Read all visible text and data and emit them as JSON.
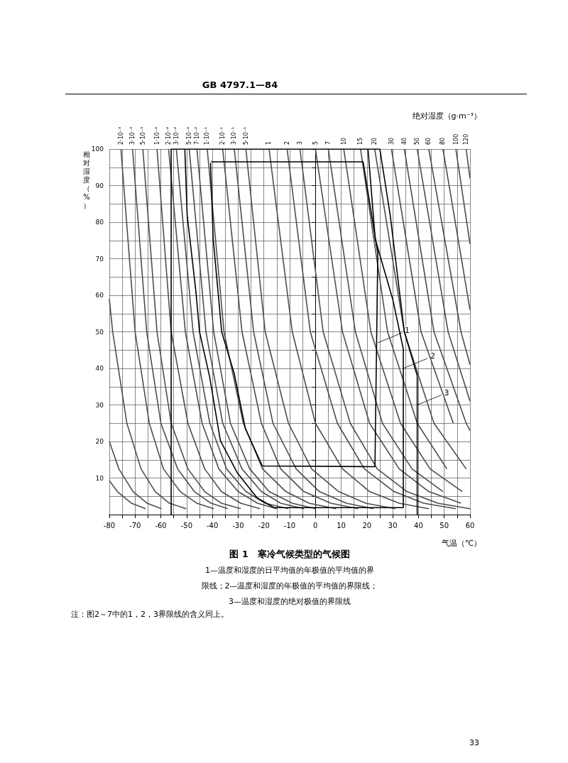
{
  "chart_data": {
    "type": "line",
    "title": "图 1　寒冷气候类型的气候图",
    "xlabel": "气温（℃）",
    "ylabel": "相对湿度（%）",
    "x2label": "绝对湿度（g·m⁻³）",
    "xlim": [
      -80,
      60
    ],
    "ylim": [
      0,
      100
    ],
    "xticks": [
      -80,
      {
        "value": -75,
        "label": null
      },
      -70,
      {
        "value": -65,
        "label": null
      },
      -60,
      {
        "value": -55,
        "label": null
      },
      -50,
      {
        "value": -45,
        "label": null
      },
      -40,
      {
        "value": -35,
        "label": null
      },
      -30,
      {
        "value": -25,
        "label": null
      },
      -20,
      {
        "value": -15,
        "label": null
      },
      -10,
      {
        "value": -5,
        "label": null
      },
      0,
      {
        "value": 5,
        "label": null
      },
      10,
      {
        "value": 15,
        "label": null
      },
      20,
      {
        "value": 25,
        "label": null
      },
      30,
      {
        "value": 35,
        "label": null
      },
      40,
      {
        "value": 45,
        "label": null
      },
      50,
      {
        "value": 55,
        "label": null
      },
      60
    ],
    "yticks": [
      {
        "value": 0,
        "label": null
      },
      {
        "value": 5,
        "label": null
      },
      10,
      {
        "value": 15,
        "label": null
      },
      20,
      {
        "value": 25,
        "label": null
      },
      30,
      {
        "value": 35,
        "label": null
      },
      40,
      {
        "value": 45,
        "label": null
      },
      50,
      {
        "value": 55,
        "label": null
      },
      60,
      {
        "value": 65,
        "label": null
      },
      70,
      {
        "value": 75,
        "label": null
      },
      80,
      {
        "value": 85,
        "label": null
      },
      90,
      {
        "value": 95,
        "label": null
      },
      100
    ],
    "grid": true,
    "series": [
      {
        "color": "#000000",
        "x": [
          -56,
          -56,
          25,
          29,
          34.5,
          39.5,
          39.5
        ],
        "values": [
          0,
          100,
          100,
          82,
          50,
          38,
          0
        ]
      },
      {
        "color": "#000000",
        "x": [
          -50.7,
          -49.8,
          -46.4,
          -45,
          -41.1,
          -36.9,
          -30.3,
          -22.7,
          -16.1,
          34.1,
          34.1,
          30,
          23.2,
          20.4
        ],
        "values": [
          100,
          82,
          61,
          50,
          37.8,
          20.2,
          11.4,
          4.6,
          1.9,
          1.9,
          45.3,
          58.9,
          75.4,
          100
        ]
      },
      {
        "color": "#000000",
        "x": [
          -40.7,
          -39.7,
          -37.8,
          -36.4,
          -31.5,
          -27.2,
          -20.6,
          23.1,
          24.2,
          18.5,
          -40.5
        ],
        "values": [
          96.2,
          75.4,
          60.9,
          50,
          38.5,
          23.5,
          13.3,
          13.1,
          71.5,
          96.5,
          96.5
        ]
      },
      {
        "color": "#4d4d4d",
        "x": [
          -80,
          -78.7,
          -73.2,
          -67.7,
          -62.2,
          -56.7,
          -50.2
        ],
        "values": [
          59,
          50,
          25,
          12.5,
          6.3,
          3.1,
          1.6
        ]
      },
      {
        "color": "#4d4d4d",
        "x": [
          -80,
          -76.3,
          -70.8,
          -65.3,
          -59.8
        ],
        "values": [
          20,
          12.5,
          6.3,
          3.1,
          1.6
        ]
      },
      {
        "color": "#4d4d4d",
        "x": [
          -80,
          -76.9,
          -71.4,
          -65.9
        ],
        "values": [
          9.3,
          6.3,
          3.1,
          1.6
        ]
      },
      {
        "color": "#4d4d4d",
        "x": [
          -75.5,
          -70,
          -64.5,
          -59,
          -52.5,
          -46,
          -39.5
        ],
        "values": [
          100,
          50,
          25,
          12.5,
          6.3,
          3.1,
          1.6
        ]
      },
      {
        "color": "#4d4d4d",
        "x": [
          -71,
          -65.5,
          -60,
          -53.5,
          -47,
          -40.5,
          -34
        ],
        "values": [
          100,
          50,
          25,
          12.5,
          6.3,
          3.1,
          1.6
        ]
      },
      {
        "color": "#4d4d4d",
        "x": [
          -67,
          -61.5,
          -56,
          -49.5,
          -43,
          -36.5,
          -29
        ],
        "values": [
          100,
          50,
          25,
          12.5,
          6.3,
          3.1,
          1.6
        ]
      },
      {
        "color": "#4d4d4d",
        "x": [
          -61.5,
          -56,
          -49.5,
          -43,
          -36.5,
          -29,
          -21.5
        ],
        "values": [
          100,
          50,
          25,
          12.5,
          6.3,
          3.1,
          1.6
        ]
      },
      {
        "color": "#4d4d4d",
        "x": [
          -57,
          -50.5,
          -44,
          -37.5,
          -30,
          -22.5,
          -15
        ],
        "values": [
          100,
          50,
          25,
          12.5,
          6.3,
          3.1,
          1.6
        ]
      },
      {
        "color": "#4d4d4d",
        "x": [
          -54,
          -47.5,
          -41,
          -34.5,
          -27,
          -19.5,
          -10.5
        ],
        "values": [
          100,
          50,
          25,
          12.5,
          6.3,
          3.1,
          1.6
        ]
      },
      {
        "color": "#4d4d4d",
        "x": [
          -49,
          -42.5,
          -36,
          -28.5,
          -21,
          -13.5,
          -4.5
        ],
        "values": [
          100,
          50,
          25,
          12.5,
          6.3,
          3.1,
          1.6
        ]
      },
      {
        "color": "#4d4d4d",
        "x": [
          -46,
          -39.5,
          -33,
          -25.5,
          -18,
          -9,
          0
        ],
        "values": [
          100,
          50,
          25,
          12.5,
          6.3,
          3.1,
          1.6
        ]
      },
      {
        "color": "#4d4d4d",
        "x": [
          -42,
          -35.5,
          -28,
          -20.5,
          -11.5,
          -2.5,
          8
        ],
        "values": [
          100,
          50,
          25,
          12.5,
          6.3,
          3.1,
          1.6
        ]
      },
      {
        "color": "#4d4d4d",
        "x": [
          -36,
          -28.5,
          -21,
          -13.5,
          -4.5,
          6,
          16.5
        ],
        "values": [
          100,
          50,
          25,
          12.5,
          6.3,
          3.1,
          1.6
        ]
      },
      {
        "color": "#4d4d4d",
        "x": [
          -31.5,
          -24,
          -16.5,
          -7.5,
          1.5,
          12,
          22.5
        ],
        "values": [
          100,
          50,
          25,
          12.5,
          6.3,
          3.1,
          1.6
        ]
      },
      {
        "color": "#4d4d4d",
        "x": [
          -27,
          -19.5,
          -10.5,
          -1.5,
          9,
          19.5,
          31
        ],
        "values": [
          100,
          50,
          25,
          12.5,
          6.3,
          3.1,
          1.6
        ]
      },
      {
        "color": "#4d4d4d",
        "x": [
          -18,
          -9,
          0,
          10.5,
          21,
          32.5,
          44
        ],
        "values": [
          100,
          50,
          25,
          12.5,
          6.3,
          3.1,
          1.6
        ]
      },
      {
        "color": "#4d4d4d",
        "x": [
          -11,
          -2,
          8.5,
          19,
          30.5,
          42,
          54.5
        ],
        "values": [
          100,
          50,
          25,
          12.5,
          6.3,
          3.1,
          1.6
        ]
      },
      {
        "color": "#4d4d4d",
        "x": [
          -6,
          3,
          13.5,
          24,
          35.5,
          47.5,
          60
        ],
        "values": [
          100,
          50,
          25,
          12.5,
          6.3,
          3.1,
          1.6
        ]
      },
      {
        "color": "#4d4d4d",
        "x": [
          0,
          10.5,
          21,
          32.5,
          44,
          56.5
        ],
        "values": [
          100,
          50,
          25,
          12.5,
          6.3,
          3.1
        ]
      },
      {
        "color": "#4d4d4d",
        "x": [
          5,
          15.5,
          26,
          37.5,
          49.5
        ],
        "values": [
          100,
          50,
          25,
          12.5,
          6.3
        ]
      },
      {
        "color": "#4d4d4d",
        "x": [
          11,
          21.5,
          33,
          44.5,
          57
        ],
        "values": [
          100,
          50,
          25,
          12.5,
          6.3
        ]
      },
      {
        "color": "#4d4d4d",
        "x": [
          17.5,
          28,
          39.5,
          51
        ],
        "values": [
          100,
          50,
          25,
          12.5
        ]
      },
      {
        "color": "#4d4d4d",
        "x": [
          23,
          34.5,
          46,
          58.5
        ],
        "values": [
          100,
          50,
          25,
          12.5
        ]
      },
      {
        "color": "#4d4d4d",
        "x": [
          29.5,
          41,
          53.5
        ],
        "values": [
          100,
          50,
          25
        ]
      },
      {
        "color": "#4d4d4d",
        "x": [
          34.5,
          46,
          58.5,
          60
        ],
        "values": [
          100,
          50,
          25,
          23
        ]
      },
      {
        "color": "#4d4d4d",
        "x": [
          39.5,
          51.5,
          60
        ],
        "values": [
          100,
          50,
          31
        ]
      },
      {
        "color": "#4d4d4d",
        "x": [
          44,
          56.5,
          60
        ],
        "values": [
          100,
          50,
          41
        ]
      },
      {
        "color": "#4d4d4d",
        "x": [
          49.5,
          60
        ],
        "values": [
          100,
          56
        ]
      },
      {
        "color": "#4d4d4d",
        "x": [
          54.5,
          60
        ],
        "values": [
          100,
          74
        ]
      },
      {
        "color": "#4d4d4d",
        "x": [
          58.5,
          60
        ],
        "values": [
          100,
          92
        ]
      }
    ],
    "annotations": [
      "GB 4797.1—84",
      {
        "text": "2·10⁻³",
        "x": -75.5,
        "y": 100
      },
      {
        "text": "3·10⁻³",
        "x": -71,
        "y": 100
      },
      {
        "text": "5·10⁻³",
        "x": -67,
        "y": 100
      },
      {
        "text": "1·10⁻²",
        "x": -61.5,
        "y": 100
      },
      {
        "text": "2·10⁻²",
        "x": -57,
        "y": 100
      },
      {
        "text": "3·10⁻²",
        "x": -54,
        "y": 100
      },
      {
        "text": "5·10⁻²",
        "x": -49,
        "y": 100
      },
      {
        "text": "7·10⁻²",
        "x": -46,
        "y": 100
      },
      {
        "text": "1·10⁻¹",
        "x": -42,
        "y": 100
      },
      {
        "text": "2·10⁻¹",
        "x": -36,
        "y": 100
      },
      {
        "text": "3·10⁻¹",
        "x": -31.5,
        "y": 100
      },
      {
        "text": "5·10⁻¹",
        "x": -27,
        "y": 100
      },
      {
        "text": "1",
        "x": -18,
        "y": 100
      },
      {
        "text": "2",
        "x": -11,
        "y": 100
      },
      {
        "text": "3",
        "x": -6,
        "y": 100
      },
      {
        "text": "5",
        "x": 0,
        "y": 100
      },
      {
        "text": "7",
        "x": 5,
        "y": 100
      },
      {
        "text": "10",
        "x": 11,
        "y": 100
      },
      {
        "text": "15",
        "x": 17.5,
        "y": 100
      },
      {
        "text": "20",
        "x": 23,
        "y": 100
      },
      {
        "text": "30",
        "x": 29.5,
        "y": 100
      },
      {
        "text": "40",
        "x": 34.5,
        "y": 100
      },
      {
        "text": "50",
        "x": 39.5,
        "y": 100
      },
      {
        "text": "60",
        "x": 44,
        "y": 100
      },
      {
        "text": "80",
        "x": 49.5,
        "y": 100
      },
      {
        "text": "100",
        "x": 54.5,
        "y": 100
      },
      {
        "text": "120",
        "x": 58.5,
        "y": 100
      },
      {
        "text": "1",
        "x": 24.2,
        "y": 47
      },
      {
        "text": "2",
        "x": 34.1,
        "y": 40
      },
      {
        "text": "3",
        "x": 39.5,
        "y": 30
      },
      "1—温度和湿度的日平均值的年极值的平均值的界",
      "限线；2—温度和湿度的年极值的平均值的界限线；",
      "3—温度和湿度的绝对极值的界限线",
      "注：图2～7中的1，2，3界限线的含义同上。",
      "33"
    ]
  }
}
